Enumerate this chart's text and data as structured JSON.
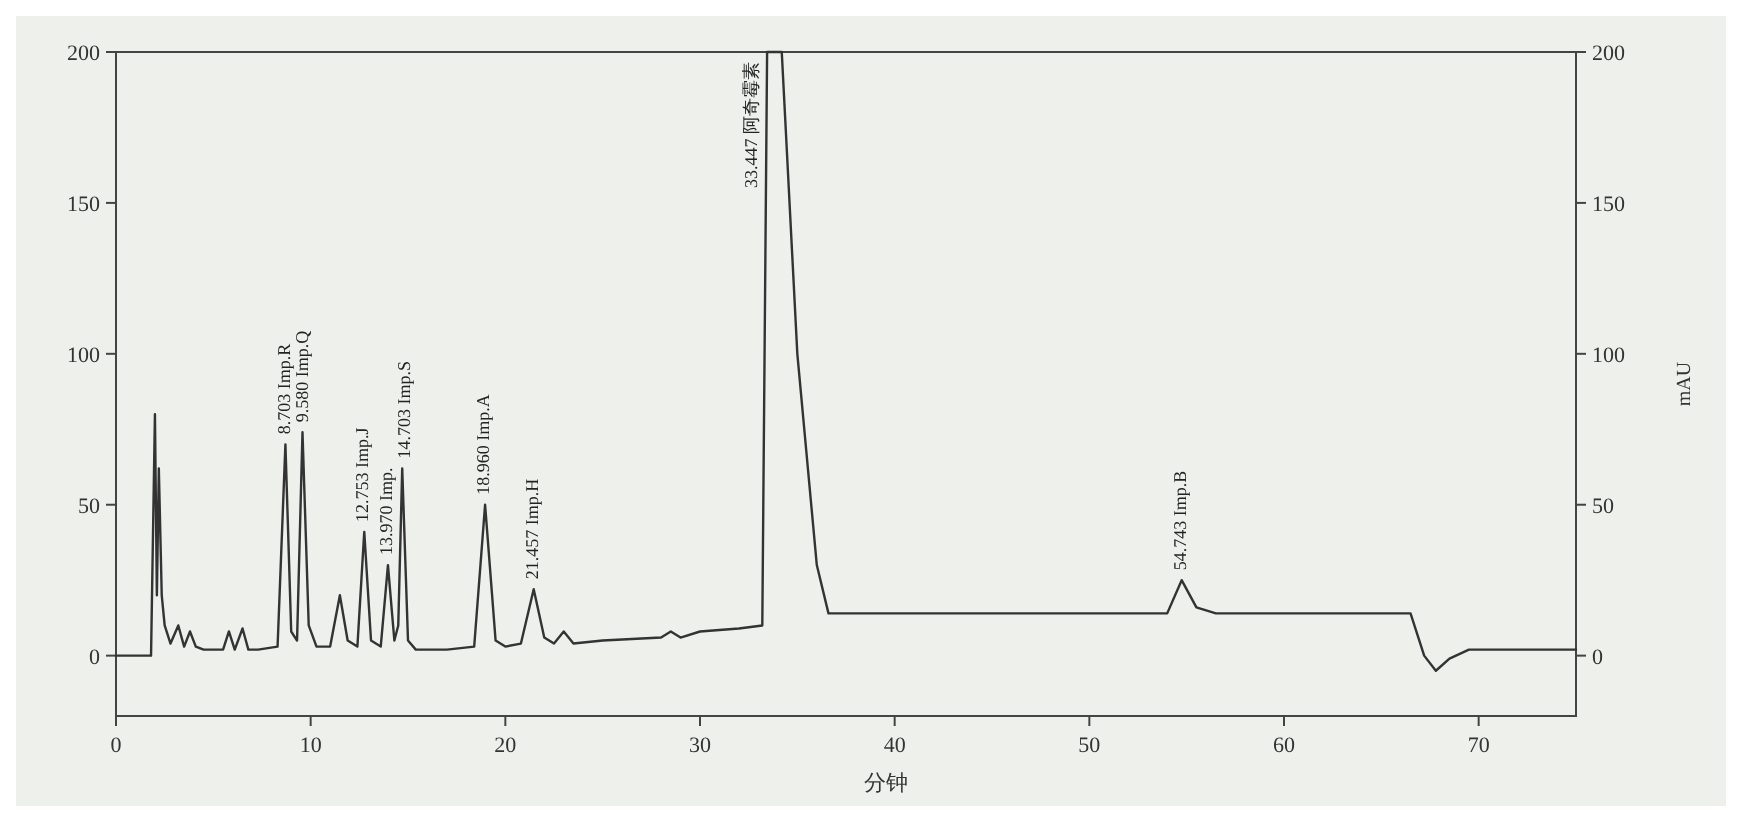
{
  "chart_data": {
    "type": "line",
    "xlabel": "分钟",
    "y2label": "mAU",
    "x": [
      0,
      1.8,
      1.9,
      2.0,
      2.1,
      2.2,
      2.35,
      2.5,
      2.8,
      3.2,
      3.5,
      3.8,
      4.1,
      4.5,
      5.5,
      5.8,
      6.1,
      6.5,
      6.8,
      7.3,
      8.3,
      8.703,
      9.0,
      9.3,
      9.58,
      9.9,
      10.3,
      11.0,
      11.5,
      11.9,
      12.4,
      12.753,
      13.1,
      13.6,
      13.97,
      14.3,
      14.5,
      14.703,
      15.0,
      15.4,
      17,
      18.4,
      18.96,
      19.5,
      20,
      20.8,
      21.457,
      22.0,
      22.5,
      23.0,
      23.5,
      25,
      28,
      28.5,
      29,
      30,
      32,
      33.2,
      33.447,
      34.2,
      35,
      36,
      36.6,
      37,
      40,
      50,
      54,
      54.743,
      55.5,
      56.5,
      60,
      66.5,
      67.2,
      67.8,
      68.5,
      69.5,
      75
    ],
    "series": [
      {
        "color": "#333333",
        "values": [
          0,
          0,
          40,
          80,
          20,
          62,
          20,
          10,
          4,
          10,
          3,
          8,
          3,
          2,
          2,
          8,
          2,
          9,
          2,
          2,
          3,
          70,
          8,
          5,
          74,
          10,
          3,
          3,
          20,
          5,
          3,
          41,
          5,
          3,
          30,
          5,
          10,
          62,
          5,
          2,
          2,
          3,
          50,
          5,
          3,
          4,
          22,
          6,
          4,
          8,
          4,
          5,
          6,
          8,
          6,
          8,
          9,
          10,
          200,
          200,
          100,
          30,
          14,
          14,
          14,
          14,
          14,
          25,
          16,
          14,
          14,
          14,
          0,
          -5,
          -1,
          2,
          2
        ]
      }
    ],
    "xlim": [
      0,
      75
    ],
    "xticks": [
      0,
      10,
      20,
      30,
      40,
      50,
      60,
      70
    ],
    "ylim": [
      -20,
      200
    ],
    "yticks": [
      0,
      50,
      100,
      150,
      200
    ],
    "y2lim": [
      -20,
      200
    ],
    "y2ticks": [
      0,
      50,
      100,
      150,
      200
    ],
    "grid": false,
    "marker": "none",
    "line_style": "solid",
    "annotations": [
      {
        "text": "8.703 Imp.R",
        "x": 8.703,
        "y": 70
      },
      {
        "text": "9.580 Imp.Q",
        "x": 9.58,
        "y": 74
      },
      {
        "text": "12.753 Imp.J",
        "x": 12.753,
        "y": 41
      },
      {
        "text": "13.970 Imp.",
        "x": 13.97,
        "y": 30
      },
      {
        "text": "14.703 Imp.S",
        "x": 14.703,
        "y": 62
      },
      {
        "text": "18.960 Imp.A",
        "x": 18.96,
        "y": 50
      },
      {
        "text": "21.457 Imp.H",
        "x": 21.457,
        "y": 22
      },
      {
        "text": "33.447 阿奇霉素",
        "x": 33.447,
        "y": 200
      },
      {
        "text": "54.743 Imp.B",
        "x": 54.743,
        "y": 25
      }
    ]
  }
}
